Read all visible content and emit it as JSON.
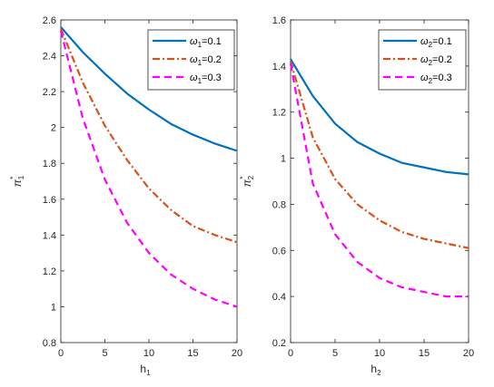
{
  "chart_data": [
    {
      "type": "line",
      "xlabel": "h",
      "xlabel_sub": "1",
      "ylabel": "π",
      "ylabel_sup": "*",
      "ylabel_sub": "1",
      "xlim": [
        0,
        20
      ],
      "ylim": [
        0.8,
        2.6
      ],
      "xticks": [
        0,
        5,
        10,
        15,
        20
      ],
      "xtick_labels": [
        "0",
        "5",
        "10",
        "15",
        "20"
      ],
      "yticks": [
        0.8,
        1.0,
        1.2,
        1.4,
        1.6,
        1.8,
        2.0,
        2.2,
        2.4,
        2.6
      ],
      "ytick_labels": [
        "0.8",
        "1",
        "1.2",
        "1.4",
        "1.6",
        "1.8",
        "2",
        "2.2",
        "2.4",
        "2.6"
      ],
      "grid": false,
      "legend_position": "top-right",
      "x": [
        0,
        2.5,
        5,
        7.5,
        10,
        12.5,
        15,
        17.5,
        20
      ],
      "series": [
        {
          "label_prefix": "ω",
          "label_sub": "1",
          "label_suffix": "=0.1",
          "color": "#0072BD",
          "style": "solid",
          "values": [
            2.56,
            2.42,
            2.3,
            2.19,
            2.1,
            2.02,
            1.96,
            1.91,
            1.87
          ]
        },
        {
          "label_prefix": "ω",
          "label_sub": "1",
          "label_suffix": "=0.2",
          "color": "#D95319",
          "style": "dashdot",
          "values": [
            2.55,
            2.25,
            2.01,
            1.82,
            1.66,
            1.54,
            1.45,
            1.4,
            1.36
          ]
        },
        {
          "label_prefix": "ω",
          "label_sub": "1",
          "label_suffix": "=0.3",
          "color": "#FF00FF",
          "style": "dashed",
          "values": [
            2.54,
            2.05,
            1.71,
            1.47,
            1.3,
            1.18,
            1.1,
            1.04,
            1.0
          ]
        }
      ]
    },
    {
      "type": "line",
      "xlabel": "h",
      "xlabel_sub": "2",
      "ylabel": "π",
      "ylabel_sup": "*",
      "ylabel_sub": "2",
      "xlim": [
        0,
        20
      ],
      "ylim": [
        0.2,
        1.6
      ],
      "xticks": [
        0,
        5,
        10,
        15,
        20
      ],
      "xtick_labels": [
        "0",
        "5",
        "10",
        "15",
        "20"
      ],
      "yticks": [
        0.2,
        0.4,
        0.6,
        0.8,
        1.0,
        1.2,
        1.4,
        1.6
      ],
      "ytick_labels": [
        "0.2",
        "0.4",
        "0.6",
        "0.8",
        "1",
        "1.2",
        "1.4",
        "1.6"
      ],
      "grid": false,
      "legend_position": "top-right",
      "x": [
        0,
        2.5,
        5,
        7.5,
        10,
        12.5,
        15,
        17.5,
        20
      ],
      "series": [
        {
          "label_prefix": "ω",
          "label_sub": "2",
          "label_suffix": "=0.1",
          "color": "#0072BD",
          "style": "solid",
          "values": [
            1.43,
            1.27,
            1.15,
            1.07,
            1.02,
            0.98,
            0.96,
            0.94,
            0.93
          ]
        },
        {
          "label_prefix": "ω",
          "label_sub": "2",
          "label_suffix": "=0.2",
          "color": "#D95319",
          "style": "dashdot",
          "values": [
            1.42,
            1.09,
            0.91,
            0.8,
            0.73,
            0.68,
            0.65,
            0.63,
            0.61
          ]
        },
        {
          "label_prefix": "ω",
          "label_sub": "2",
          "label_suffix": "=0.3",
          "color": "#FF00FF",
          "style": "dashed",
          "values": [
            1.41,
            0.89,
            0.67,
            0.55,
            0.48,
            0.44,
            0.42,
            0.4,
            0.4
          ]
        }
      ]
    }
  ]
}
